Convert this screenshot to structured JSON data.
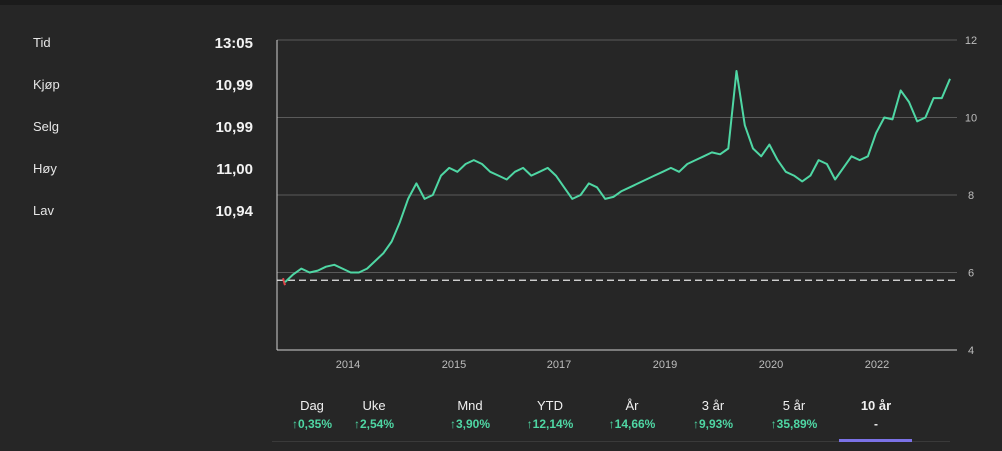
{
  "stats": [
    {
      "label": "Tid",
      "value": "13:05"
    },
    {
      "label": "Kjøp",
      "value": "10,99"
    },
    {
      "label": "Selg",
      "value": "10,99"
    },
    {
      "label": "Høy",
      "value": "11,00"
    },
    {
      "label": "Lav",
      "value": "10,94"
    }
  ],
  "tabs": [
    {
      "label": "Dag",
      "change": "0,35%",
      "up": true,
      "active": false
    },
    {
      "label": "Uke",
      "change": "2,54%",
      "up": true,
      "active": false
    },
    {
      "label": "Mnd",
      "change": "3,90%",
      "up": true,
      "active": false
    },
    {
      "label": "YTD",
      "change": "12,14%",
      "up": true,
      "active": false
    },
    {
      "label": "År",
      "change": "14,66%",
      "up": true,
      "active": false
    },
    {
      "label": "3 år",
      "change": "9,93%",
      "up": true,
      "active": false
    },
    {
      "label": "5 år",
      "change": "35,89%",
      "up": true,
      "active": false
    },
    {
      "label": "10 år",
      "change": "-",
      "up": false,
      "active": true
    }
  ],
  "colors": {
    "line": "#4fd7a4",
    "positive": "#4fd7a4",
    "negative": "#e0474c",
    "active_tab": "#7b72e6",
    "grid": "#5a5a5a",
    "reference": "#e6e6e6"
  },
  "chart_data": {
    "type": "line",
    "x_tick_labels": [
      "2014",
      "2015",
      "2017",
      "2019",
      "2020",
      "2022"
    ],
    "y_tick_labels": [
      "4",
      "6",
      "8",
      "10",
      "12"
    ],
    "ylim": [
      4,
      12
    ],
    "y_axis_side": "right",
    "reference_line": 5.8,
    "grid": "horizontal",
    "series": [
      {
        "values": [
          5.75,
          5.95,
          6.1,
          6.0,
          6.05,
          6.15,
          6.2,
          6.1,
          6.0,
          6.0,
          6.1,
          6.3,
          6.5,
          6.8,
          7.3,
          7.9,
          8.3,
          7.9,
          8.0,
          8.5,
          8.7,
          8.6,
          8.8,
          8.9,
          8.8,
          8.6,
          8.5,
          8.4,
          8.6,
          8.7,
          8.5,
          8.6,
          8.7,
          8.5,
          8.2,
          7.9,
          8.0,
          8.3,
          8.2,
          7.9,
          7.95,
          8.1,
          8.2,
          8.3,
          8.4,
          8.5,
          8.6,
          8.7,
          8.6,
          8.8,
          8.9,
          9.0,
          9.1,
          9.05,
          9.2,
          11.2,
          9.8,
          9.2,
          9.0,
          9.3,
          8.9,
          8.6,
          8.5,
          8.35,
          8.5,
          8.9,
          8.8,
          8.4,
          8.7,
          9.0,
          8.9,
          9.0,
          9.6,
          10.0,
          9.95,
          10.7,
          10.4,
          9.9,
          10.0,
          10.5,
          10.5,
          11.0
        ]
      }
    ]
  }
}
